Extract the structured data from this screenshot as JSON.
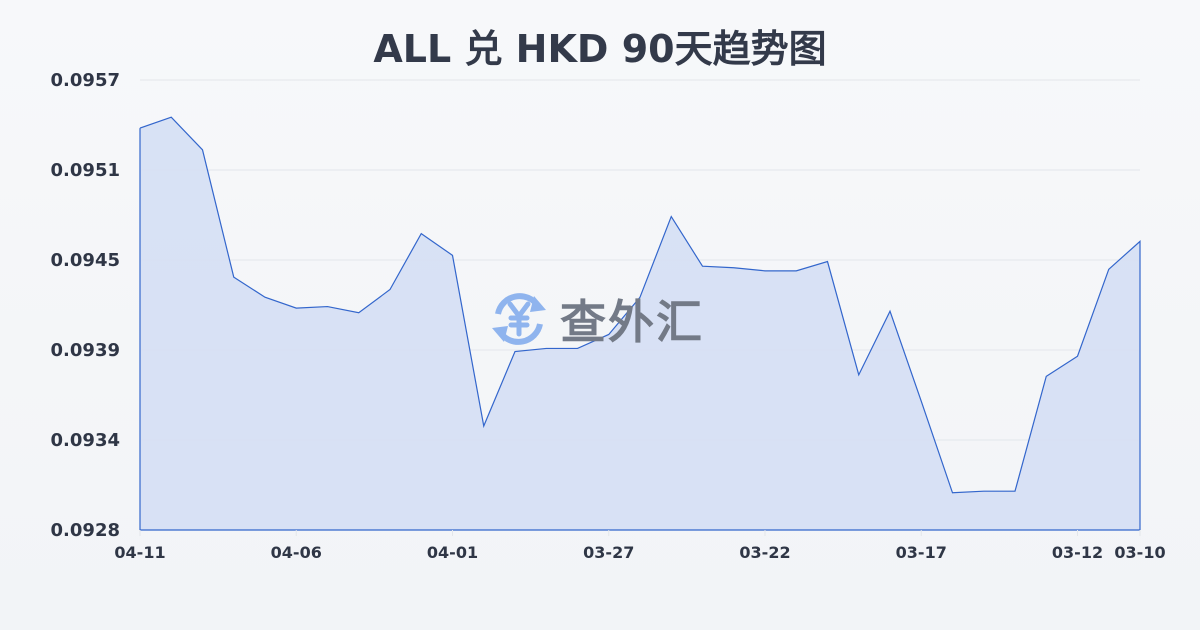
{
  "chart_data": {
    "type": "area",
    "title": "ALL 兑 HKD 90天趋势图",
    "xlabel": "",
    "ylabel": "",
    "ylim": [
      0.0928,
      0.0957
    ],
    "yticks": [
      "0.0957",
      "0.0951",
      "0.0945",
      "0.0939",
      "0.0934",
      "0.0928"
    ],
    "xticks": [
      "04-11",
      "04-06",
      "04-01",
      "03-27",
      "03-22",
      "03-17",
      "03-12",
      "03-10"
    ],
    "grid": true,
    "x": [
      "04-11",
      "04-10",
      "04-09",
      "04-08",
      "04-07",
      "04-06",
      "04-05",
      "04-04",
      "04-03",
      "04-02",
      "04-01",
      "03-31",
      "03-30",
      "03-29",
      "03-28",
      "03-27",
      "03-26",
      "03-25",
      "03-24",
      "03-23",
      "03-22",
      "03-21",
      "03-20",
      "03-19",
      "03-18",
      "03-17",
      "03-16",
      "03-15",
      "03-14",
      "03-13",
      "03-12",
      "03-11",
      "03-10"
    ],
    "values": [
      0.09539,
      0.09546,
      0.09525,
      0.09443,
      0.0943,
      0.09423,
      0.09424,
      0.0942,
      0.09435,
      0.09471,
      0.09457,
      0.09347,
      0.09395,
      0.09397,
      0.09397,
      0.09406,
      0.0943,
      0.09482,
      0.0945,
      0.09449,
      0.09447,
      0.09447,
      0.09453,
      0.0938,
      0.09421,
      0.09363,
      0.09304,
      0.09305,
      0.09305,
      0.09379,
      0.09392,
      0.09448,
      0.09466
    ],
    "colors": {
      "line": "#3366cc",
      "fill": "#d5dff4",
      "grid": "#e3e6eb"
    }
  },
  "watermark": {
    "text": "查外汇",
    "icon": "yuen-exchange-icon"
  }
}
